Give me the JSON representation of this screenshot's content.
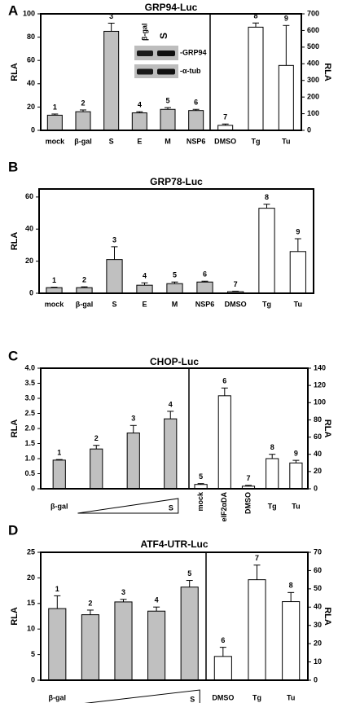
{
  "chart_data": [
    {
      "type": "bar",
      "panel": "A",
      "title": "GRP94-Luc",
      "ylabel": "RLA",
      "y2label": "RLA",
      "categories": [
        "mock",
        "β-gal",
        "S",
        "E",
        "M",
        "NSP6",
        "DMSO",
        "Tg",
        "Tu"
      ],
      "series": [
        {
          "color": "#c0c0c0",
          "values": [
            13,
            16,
            85,
            15,
            18,
            17,
            null,
            null,
            null
          ],
          "errors": [
            1,
            1.5,
            7,
            1,
            1.5,
            1,
            null,
            null,
            null
          ]
        },
        {
          "color": "#ffffff",
          "axis": "y2",
          "values": [
            null,
            null,
            null,
            null,
            null,
            null,
            30,
            620,
            390
          ],
          "errors": [
            null,
            null,
            null,
            null,
            null,
            null,
            8,
            25,
            240
          ]
        }
      ],
      "bar_labels": [
        "1",
        "2",
        "3",
        "4",
        "5",
        "6",
        "7",
        "8",
        "9"
      ],
      "ylim": [
        0,
        100
      ],
      "yticks": [
        0,
        20,
        40,
        60,
        80,
        100
      ],
      "y2lim": [
        0,
        700
      ],
      "y2ticks": [
        0,
        100,
        200,
        300,
        400,
        500,
        600,
        700
      ],
      "inset": {
        "lanes": [
          "β-gal",
          "S"
        ],
        "bands": [
          "-GRP94",
          "-α-tub"
        ]
      }
    },
    {
      "type": "bar",
      "panel": "B",
      "title": "GRP78-Luc",
      "ylabel": "RLA",
      "categories": [
        "mock",
        "β-gal",
        "S",
        "E",
        "M",
        "NSP6",
        "DMSO",
        "Tg",
        "Tu"
      ],
      "series": [
        {
          "color": "#c0c0c0",
          "values": [
            3.5,
            3.5,
            21,
            5,
            6,
            7,
            null,
            null,
            null
          ],
          "errors": [
            0.3,
            0.5,
            8,
            1.5,
            1,
            0.5,
            null,
            null,
            null
          ]
        },
        {
          "color": "#ffffff",
          "values": [
            null,
            null,
            null,
            null,
            null,
            null,
            1,
            53,
            26
          ],
          "errors": [
            null,
            null,
            null,
            null,
            null,
            null,
            0.3,
            2.5,
            8
          ]
        }
      ],
      "bar_labels": [
        "1",
        "2",
        "3",
        "4",
        "5",
        "6",
        "7",
        "8",
        "9"
      ],
      "ylim": [
        0,
        65
      ],
      "yticks": [
        0,
        20,
        40,
        60
      ]
    },
    {
      "type": "bar",
      "panel": "C",
      "title": "CHOP-Luc",
      "ylabel": "RLA",
      "y2label": "RLA",
      "categories": [
        "β-gal",
        null,
        null,
        "S",
        "mock",
        "eIF2αDA",
        "DMSO",
        "Tg",
        "Tu"
      ],
      "series": [
        {
          "color": "#c0c0c0",
          "values": [
            0.95,
            1.32,
            1.85,
            2.32,
            null,
            null,
            null,
            null,
            null
          ],
          "errors": [
            0.02,
            0.12,
            0.25,
            0.25,
            null,
            null,
            null,
            null,
            null
          ]
        },
        {
          "color": "#ffffff",
          "axis": "y2",
          "values": [
            null,
            null,
            null,
            null,
            5,
            108,
            3,
            35,
            30
          ],
          "errors": [
            null,
            null,
            null,
            null,
            1,
            9,
            1,
            5,
            3
          ]
        }
      ],
      "bar_labels": [
        "1",
        "2",
        "3",
        "4",
        "5",
        "6",
        "7",
        "8",
        "9"
      ],
      "ylim": [
        0,
        4
      ],
      "yticks": [
        0,
        0.5,
        {
          "value": 1,
          "label": "1.0"
        },
        1.5,
        {
          "value": 2,
          "label": "2.0"
        },
        2.5,
        {
          "value": 3,
          "label": "3.0"
        },
        3.5,
        {
          "value": 4,
          "label": "4.0"
        }
      ],
      "y2lim": [
        0,
        140
      ],
      "y2ticks": [
        0,
        20,
        40,
        60,
        80,
        100,
        120,
        140
      ]
    },
    {
      "type": "bar",
      "panel": "D",
      "title": "ATF4-UTR-Luc",
      "ylabel": "RLA",
      "y2label": "RLA",
      "categories": [
        "β-gal",
        null,
        null,
        null,
        "S",
        "DMSO",
        "Tg",
        "Tu"
      ],
      "series": [
        {
          "color": "#c0c0c0",
          "values": [
            14,
            12.8,
            15.3,
            13.5,
            18.2,
            null,
            null,
            null
          ],
          "errors": [
            2.5,
            0.9,
            0.5,
            0.8,
            1.3,
            null,
            null,
            null
          ]
        },
        {
          "color": "#ffffff",
          "axis": "y2",
          "values": [
            null,
            null,
            null,
            null,
            null,
            13,
            55,
            43
          ],
          "errors": [
            null,
            null,
            null,
            null,
            null,
            5,
            8,
            5
          ]
        }
      ],
      "bar_labels": [
        "1",
        "2",
        "3",
        "4",
        "5",
        "6",
        "7",
        "8"
      ],
      "ylim": [
        0,
        25
      ],
      "yticks": [
        0,
        5,
        10,
        15,
        20,
        25
      ],
      "y2lim": [
        0,
        70
      ],
      "y2ticks": [
        0,
        10,
        20,
        30,
        40,
        50,
        60,
        70
      ]
    }
  ]
}
